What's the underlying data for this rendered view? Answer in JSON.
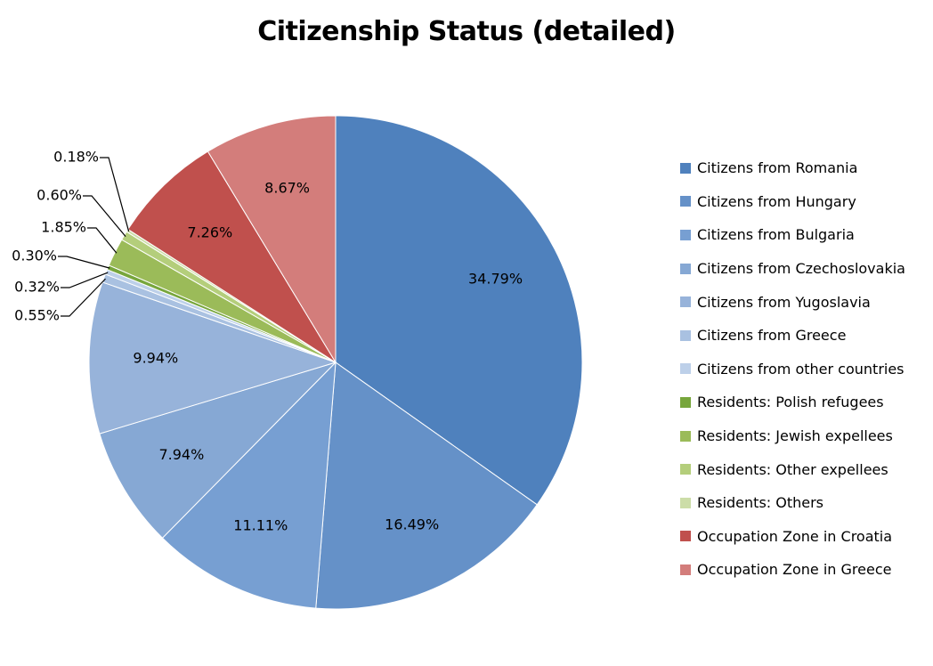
{
  "chart_data": {
    "type": "pie",
    "title": "Citizenship Status (detailed)",
    "start_angle_deg": 0,
    "direction": "clockwise",
    "legend_position": "right",
    "series": [
      {
        "name": "Citizens from Romania",
        "value": 34.79,
        "label": "34.79%",
        "color": "#4F81BD"
      },
      {
        "name": "Citizens from Hungary",
        "value": 16.49,
        "label": "16.49%",
        "color": "#6591C8"
      },
      {
        "name": "Citizens from Bulgaria",
        "value": 11.11,
        "label": "11.11%",
        "color": "#779FD2"
      },
      {
        "name": "Citizens from Czechoslovakia",
        "value": 7.94,
        "label": "7.94%",
        "color": "#86A8D4"
      },
      {
        "name": "Citizens from Yugoslavia",
        "value": 9.94,
        "label": "9.94%",
        "color": "#97B3DA"
      },
      {
        "name": "Citizens from Greece",
        "value": 0.55,
        "label": "0.55%",
        "color": "#A9C1E1"
      },
      {
        "name": "Citizens from other countries",
        "value": 0.32,
        "label": "0.32%",
        "color": "#BDD0E9"
      },
      {
        "name": "Residents: Polish refugees",
        "value": 0.3,
        "label": "0.30%",
        "color": "#77A63C"
      },
      {
        "name": "Residents: Jewish expellees",
        "value": 1.85,
        "label": "1.85%",
        "color": "#9BBB59"
      },
      {
        "name": "Residents: Other expellees",
        "value": 0.6,
        "label": "0.60%",
        "color": "#B4CE7B"
      },
      {
        "name": "Residents: Others",
        "value": 0.18,
        "label": "0.18%",
        "color": "#CCDDA8"
      },
      {
        "name": "Occupation Zone in Croatia",
        "value": 7.26,
        "label": "7.26%",
        "color": "#C0504D"
      },
      {
        "name": "Occupation Zone in Greece",
        "value": 8.67,
        "label": "8.67%",
        "color": "#D37D7B"
      }
    ]
  }
}
